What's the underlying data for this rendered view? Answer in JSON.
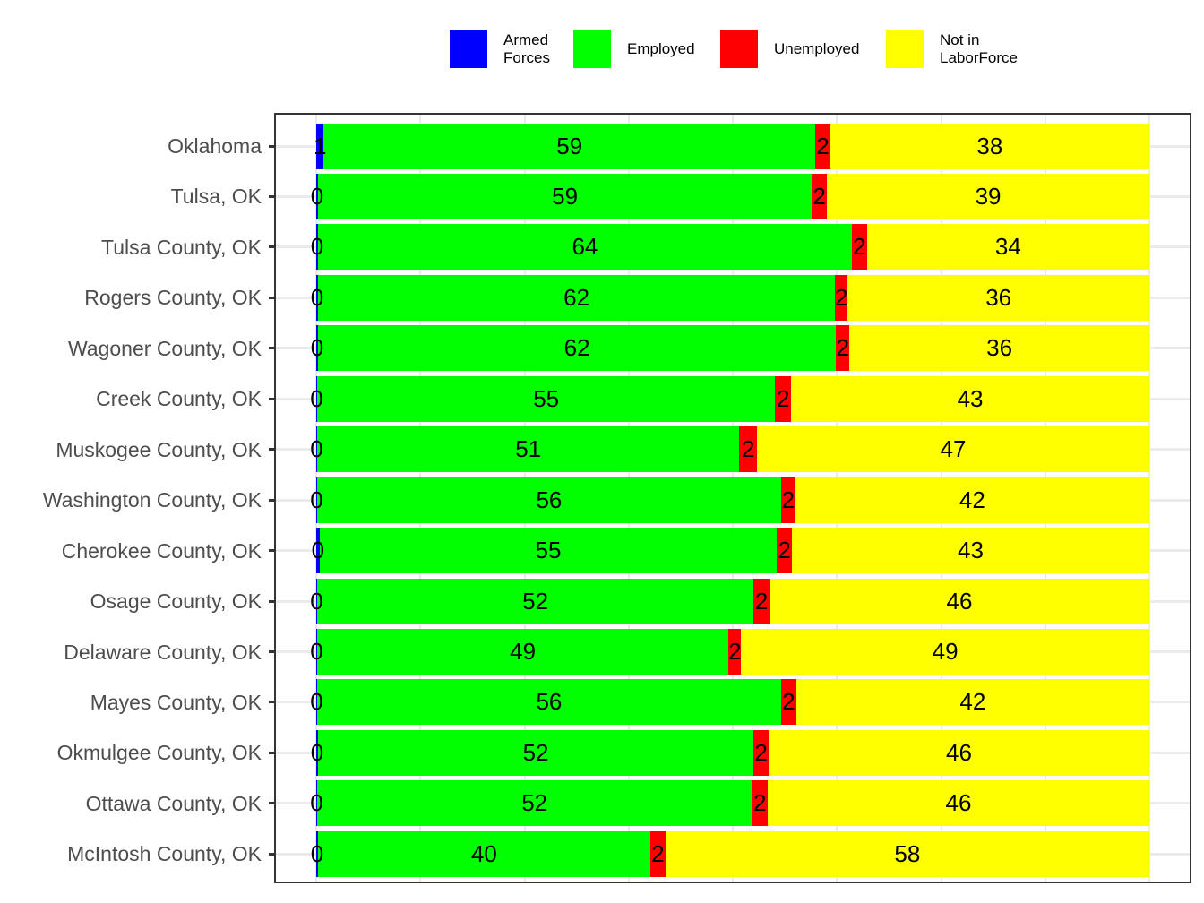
{
  "chart_data": {
    "type": "bar",
    "orientation": "horizontal",
    "stacked": true,
    "normalized": "percent",
    "title": "",
    "xlabel": "",
    "ylabel": "",
    "xlim": [
      0,
      100
    ],
    "grid": true,
    "legend_position": "top",
    "legend": [
      {
        "name": "Armed\nForces",
        "color": "#0000ff"
      },
      {
        "name": "Employed",
        "color": "#00ff00"
      },
      {
        "name": "Unemployed",
        "color": "#ff0000"
      },
      {
        "name": "Not in\nLaborForce",
        "color": "#ffff00"
      }
    ],
    "categories": [
      "Oklahoma",
      "Tulsa, OK",
      "Tulsa County, OK",
      "Rogers County, OK",
      "Wagoner County, OK",
      "Creek County, OK",
      "Muskogee County, OK",
      "Washington County, OK",
      "Cherokee County, OK",
      "Osage County, OK",
      "Delaware County, OK",
      "Mayes County, OK",
      "Okmulgee County, OK",
      "Ottawa County, OK",
      "McIntosh County, OK"
    ],
    "series": [
      {
        "name": "Armed Forces",
        "color": "#0000ff",
        "values": [
          1,
          0,
          0,
          0,
          0,
          0,
          0,
          0,
          0,
          0,
          0,
          0,
          0,
          0,
          0
        ],
        "widths": [
          0.9,
          0.2,
          0.2,
          0.2,
          0.2,
          0.1,
          0.1,
          0.1,
          0.4,
          0.1,
          0.1,
          0.1,
          0.2,
          0.1,
          0.2
        ]
      },
      {
        "name": "Employed",
        "color": "#00ff00",
        "values": [
          59,
          59,
          64,
          62,
          62,
          55,
          51,
          56,
          55,
          52,
          49,
          56,
          52,
          52,
          40
        ],
        "widths": [
          59.0,
          59.3,
          64.1,
          62.1,
          62.2,
          55.0,
          50.7,
          55.7,
          54.9,
          52.4,
          49.4,
          55.7,
          52.3,
          52.2,
          39.9
        ]
      },
      {
        "name": "Unemployed",
        "color": "#ff0000",
        "values": [
          2,
          2,
          2,
          2,
          2,
          2,
          2,
          2,
          2,
          2,
          2,
          2,
          2,
          2,
          2
        ],
        "widths": [
          1.8,
          1.8,
          1.8,
          1.5,
          1.6,
          1.9,
          2.1,
          1.7,
          1.8,
          1.9,
          1.5,
          1.8,
          1.8,
          1.9,
          1.8
        ]
      },
      {
        "name": "Not in LaborForce",
        "color": "#ffff00",
        "values": [
          38,
          39,
          34,
          36,
          36,
          43,
          47,
          42,
          43,
          46,
          49,
          42,
          46,
          46,
          58
        ],
        "widths": [
          38.3,
          38.7,
          33.9,
          36.2,
          36.0,
          43.0,
          47.1,
          42.5,
          42.9,
          45.6,
          49.0,
          42.4,
          45.7,
          45.8,
          58.1
        ]
      }
    ]
  }
}
